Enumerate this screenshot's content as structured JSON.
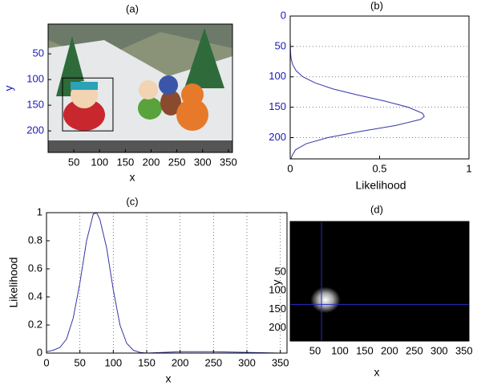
{
  "chart_data": [
    {
      "type": "image",
      "title": "(a)",
      "xlabel": "x",
      "ylabel": "y",
      "xlim": [
        0,
        358
      ],
      "ylim": [
        -8,
        242
      ],
      "y_reversed": true,
      "xticks": [
        50,
        100,
        150,
        200,
        250,
        300,
        350
      ],
      "yticks": [
        50,
        100,
        150,
        200
      ],
      "ytick_color": "#1a1ab8",
      "ylabel_color": "#1a1ab8",
      "box": {
        "x": [
          28,
          126
        ],
        "y": [
          97,
          200
        ]
      },
      "box_color": "#000000"
    },
    {
      "type": "line",
      "orientation": "horizontal",
      "title": "(b)",
      "xlabel": "Likelihood",
      "xlim": [
        0,
        1
      ],
      "ylim": [
        0,
        235
      ],
      "y_reversed": true,
      "xticks": [
        0,
        0.5,
        1
      ],
      "yticks": [
        0,
        50,
        100,
        150,
        200
      ],
      "ytick_color": "#1a1ab8",
      "grid": "y",
      "color": "#3535a8",
      "y": [
        0,
        20,
        40,
        50,
        60,
        70,
        80,
        90,
        100,
        110,
        120,
        130,
        140,
        150,
        160,
        165,
        170,
        180,
        190,
        200,
        210,
        220,
        230,
        235
      ],
      "values": [
        0,
        0,
        0,
        0.001,
        0.002,
        0.005,
        0.014,
        0.033,
        0.071,
        0.14,
        0.24,
        0.38,
        0.53,
        0.66,
        0.74,
        0.75,
        0.73,
        0.59,
        0.39,
        0.21,
        0.09,
        0.03,
        0.01,
        0.005
      ]
    },
    {
      "type": "line",
      "orientation": "vertical",
      "title": "(c)",
      "xlabel": "x",
      "ylabel": "Likelihood",
      "xlim": [
        0,
        360
      ],
      "ylim": [
        0,
        1
      ],
      "xticks": [
        0,
        50,
        100,
        150,
        200,
        250,
        300,
        350
      ],
      "yticks": [
        0,
        0.2,
        0.4,
        0.6,
        0.8,
        1
      ],
      "grid": "x",
      "color": "#3535a8",
      "x": [
        0,
        10,
        20,
        30,
        40,
        50,
        60,
        70,
        75,
        80,
        90,
        100,
        110,
        120,
        130,
        140,
        150,
        200,
        250,
        300,
        350
      ],
      "values": [
        0.01,
        0.02,
        0.04,
        0.1,
        0.25,
        0.5,
        0.8,
        0.99,
        1,
        0.95,
        0.75,
        0.45,
        0.2,
        0.07,
        0.02,
        0.005,
        0,
        0.01,
        0.01,
        0.005,
        0
      ]
    },
    {
      "type": "heatmap",
      "title": "(d)",
      "xlabel": "x",
      "ylabel": "y",
      "xlim": [
        0,
        360
      ],
      "ylim": [
        -85,
        235
      ],
      "y_reversed": true,
      "xticks": [
        50,
        100,
        150,
        200,
        250,
        300,
        350
      ],
      "yticks": [
        50,
        100,
        150,
        200
      ],
      "blob": {
        "cx": 71,
        "cy": 125,
        "rx": 30,
        "ry": 35
      },
      "crosshair": {
        "x": 63,
        "y": 137
      },
      "crosshair_color": "#2a2ad0"
    }
  ]
}
